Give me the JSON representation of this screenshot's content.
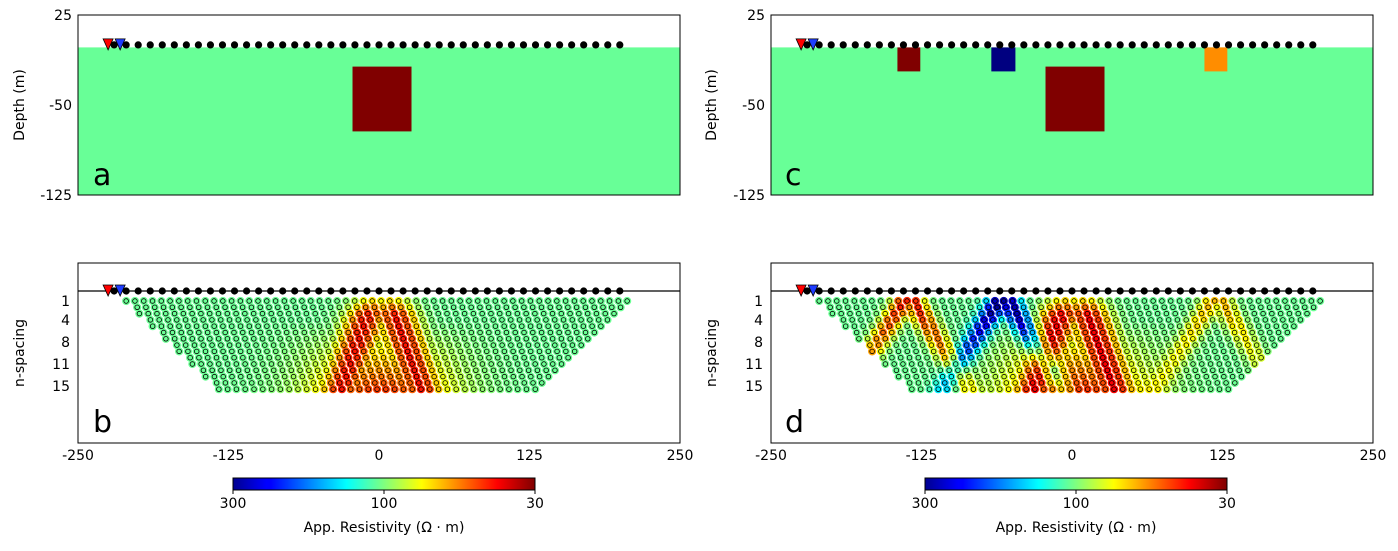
{
  "chart_data": [
    {
      "panel": "a",
      "type": "model-section",
      "ylabel": "Depth (m)",
      "yticks": [
        25,
        -50,
        -125
      ],
      "ylim": [
        -125,
        25
      ],
      "xlim": [
        -250,
        250
      ],
      "background_resistivity": 100,
      "surface_depth": -2,
      "electrodes_x": [
        -220,
        200
      ],
      "electrode_count": 43,
      "source_marker_x": -225,
      "receiver_marker_x": -215,
      "blocks": [
        {
          "x0": -22,
          "x1": 27,
          "z0": -18,
          "z1": -72,
          "resistivity": 30
        }
      ]
    },
    {
      "panel": "b",
      "type": "pseudosection",
      "ylabel": "n-spacing",
      "yticks": [
        "1",
        "4",
        "8",
        "11",
        "15"
      ],
      "xticks": [
        "-250",
        "-125",
        "0",
        "125",
        "250"
      ],
      "xlim": [
        -250,
        250
      ],
      "n_levels": 15,
      "anomalies": [
        {
          "kind": "arc",
          "center_x": 2,
          "value": 30,
          "strength": 0.75
        }
      ]
    },
    {
      "panel": "c",
      "type": "model-section",
      "ylabel": "Depth (m)",
      "yticks": [
        25,
        -50,
        -125
      ],
      "ylim": [
        -125,
        25
      ],
      "xlim": [
        -250,
        250
      ],
      "background_resistivity": 100,
      "surface_depth": -2,
      "electrodes_x": [
        -220,
        200
      ],
      "electrode_count": 43,
      "source_marker_x": -225,
      "receiver_marker_x": -215,
      "blocks": [
        {
          "x0": -145,
          "x1": -126,
          "z0": -2,
          "z1": -22,
          "resistivity": 30
        },
        {
          "x0": -67,
          "x1": -47,
          "z0": -2,
          "z1": -22,
          "resistivity": 300
        },
        {
          "x0": -22,
          "x1": 27,
          "z0": -18,
          "z1": -72,
          "resistivity": 30
        },
        {
          "x0": 110,
          "x1": 129,
          "z0": -2,
          "z1": -22,
          "resistivity": 55
        }
      ]
    },
    {
      "panel": "d",
      "type": "pseudosection",
      "ylabel": "n-spacing",
      "yticks": [
        "1",
        "4",
        "8",
        "11",
        "15"
      ],
      "xticks": [
        "-250",
        "-125",
        "0",
        "125",
        "250"
      ],
      "xlim": [
        -250,
        250
      ],
      "n_levels": 15,
      "anomalies": [
        {
          "kind": "v",
          "center_x": -136,
          "value": 30,
          "strength": 0.8
        },
        {
          "kind": "v",
          "center_x": -57,
          "value": 300,
          "strength": 1.0
        },
        {
          "kind": "arc",
          "center_x": 2,
          "value": 30,
          "strength": 0.8
        },
        {
          "kind": "v",
          "center_x": 120,
          "value": 55,
          "strength": 0.45
        }
      ]
    }
  ],
  "colorbar": {
    "title": "App. Resistivity (Ω · m)",
    "tick_labels": [
      "300",
      "100",
      "30"
    ],
    "colormap": "jet",
    "direction": "high-to-low"
  },
  "colors": {
    "background_model": "#6bfd8e",
    "high_30": "#7d0000",
    "very_high_300": "#00008f",
    "mid_55": "#ff7f10"
  }
}
